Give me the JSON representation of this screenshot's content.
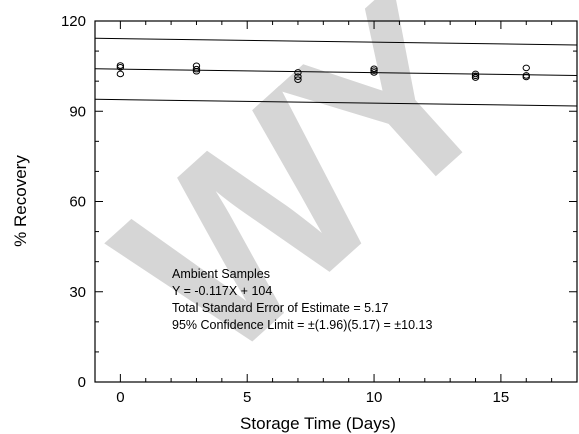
{
  "chart_data": {
    "type": "scatter",
    "xlabel": "Storage Time (Days)",
    "ylabel": "% Recovery",
    "xlim": [
      -1,
      18
    ],
    "ylim": [
      0,
      120
    ],
    "xticks": [
      0,
      5,
      10,
      15
    ],
    "yticks": [
      0,
      30,
      60,
      90,
      120
    ],
    "xtick_labels": [
      "0",
      "5",
      "10",
      "15"
    ],
    "ytick_labels": [
      "0",
      "30",
      "60",
      "90",
      "120"
    ],
    "grid": false,
    "watermark": "WY",
    "watermark_color": "#d6d6d6",
    "series": [
      {
        "marker": "open-circle",
        "points": [
          {
            "x": 0,
            "y": 105.2
          },
          {
            "x": 0,
            "y": 104.6
          },
          {
            "x": 0,
            "y": 102.4
          },
          {
            "x": 3,
            "y": 105.1
          },
          {
            "x": 3,
            "y": 104.0
          },
          {
            "x": 3,
            "y": 103.3
          },
          {
            "x": 7,
            "y": 102.9
          },
          {
            "x": 7,
            "y": 101.5
          },
          {
            "x": 7,
            "y": 100.5
          },
          {
            "x": 10,
            "y": 104.1
          },
          {
            "x": 10,
            "y": 103.5
          },
          {
            "x": 10,
            "y": 102.9
          },
          {
            "x": 14,
            "y": 102.4
          },
          {
            "x": 14,
            "y": 101.8
          },
          {
            "x": 14,
            "y": 101.2
          },
          {
            "x": 16,
            "y": 104.4
          },
          {
            "x": 16,
            "y": 101.9
          },
          {
            "x": 16,
            "y": 101.4
          }
        ]
      }
    ],
    "lines": [
      {
        "type": "regression",
        "x": [
          -1,
          18
        ],
        "y": [
          104.117,
          101.894
        ]
      },
      {
        "type": "upper-limit",
        "x": [
          -1,
          18
        ],
        "y": [
          114.247,
          112.024
        ]
      },
      {
        "type": "lower-limit",
        "x": [
          -1,
          18
        ],
        "y": [
          93.987,
          91.764
        ]
      }
    ],
    "annotation": [
      "Ambient Samples",
      "Y = -0.117X + 104",
      "Total Standard Error of Estimate = 5.17",
      "95% Confidence Limit = ±(1.96)(5.17) = ±10.13"
    ]
  }
}
